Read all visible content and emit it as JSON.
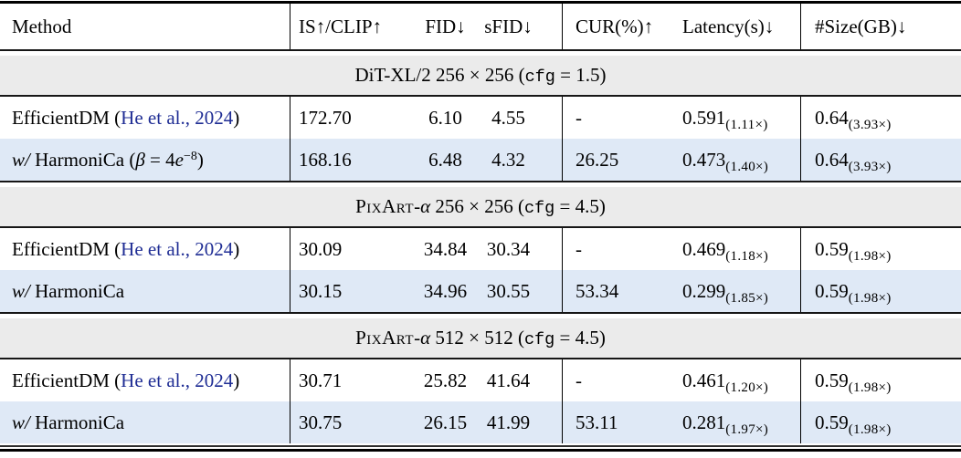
{
  "colors": {
    "section_bg": "#ebebeb",
    "highlight_bg": "#dfe9f6",
    "cite": "#1f2d94"
  },
  "header": {
    "method": "Method",
    "is_clip": "IS↑/CLIP↑",
    "fid": "FID↓",
    "sfid": "sFID↓",
    "cur": "CUR(%)↑",
    "latency": "Latency(s)↓",
    "size": "#Size(GB)↓"
  },
  "sections": [
    {
      "title": {
        "pre": "DiT-XL/2 256 × 256 (",
        "tt": "cfg",
        "post": " = 1.5)"
      },
      "rows": [
        {
          "method": {
            "pre": "EfficientDM (",
            "cite": "He et al., 2024",
            "mid": ")"
          },
          "is_clip": "172.70",
          "fid": "6.10",
          "sfid": "4.55",
          "cur": "-",
          "latency": {
            "value": "0.591",
            "speedup": "(1.11×)"
          },
          "size": {
            "value": "0.64",
            "ratio": "(3.93×)"
          }
        },
        {
          "method": {
            "w": "w/",
            "pre": " HarmoniCa (",
            "beta": "β",
            "eq": " = 4",
            "e": "e",
            "exp": "−8",
            "post": ")"
          },
          "is_clip": "168.16",
          "fid": "6.48",
          "sfid": "4.32",
          "cur": "26.25",
          "latency": {
            "value": "0.473",
            "speedup": "(1.40×)"
          },
          "size": {
            "value": "0.64",
            "ratio": "(3.93×)"
          }
        }
      ]
    },
    {
      "title": {
        "sc": "PixArt",
        "dash": "-",
        "alpha": "α",
        "mid": " 256 × 256 (",
        "tt": "cfg",
        "post": " = 4.5)"
      },
      "rows": [
        {
          "method": {
            "pre": "EfficientDM (",
            "cite": "He et al., 2024",
            "mid": ")"
          },
          "is_clip": "30.09",
          "fid": "34.84",
          "sfid": "30.34",
          "cur": "-",
          "latency": {
            "value": "0.469",
            "speedup": "(1.18×)"
          },
          "size": {
            "value": "0.59",
            "ratio": "(1.98×)"
          }
        },
        {
          "method": {
            "w": "w/",
            "pre": " HarmoniCa"
          },
          "is_clip": "30.15",
          "fid": "34.96",
          "sfid": "30.55",
          "cur": "53.34",
          "latency": {
            "value": "0.299",
            "speedup": "(1.85×)"
          },
          "size": {
            "value": "0.59",
            "ratio": "(1.98×)"
          }
        }
      ]
    },
    {
      "title": {
        "sc": "PixArt",
        "dash": "-",
        "alpha": "α",
        "mid": " 512 × 512 (",
        "tt": "cfg",
        "post": " = 4.5)"
      },
      "rows": [
        {
          "method": {
            "pre": "EfficientDM (",
            "cite": "He et al., 2024",
            "mid": ")"
          },
          "is_clip": "30.71",
          "fid": "25.82",
          "sfid": "41.64",
          "cur": "-",
          "latency": {
            "value": "0.461",
            "speedup": "(1.20×)"
          },
          "size": {
            "value": "0.59",
            "ratio": "(1.98×)"
          }
        },
        {
          "method": {
            "w": "w/",
            "pre": " HarmoniCa"
          },
          "is_clip": "30.75",
          "fid": "26.15",
          "sfid": "41.99",
          "cur": "53.11",
          "latency": {
            "value": "0.281",
            "speedup": "(1.97×)"
          },
          "size": {
            "value": "0.59",
            "ratio": "(1.98×)"
          }
        }
      ]
    }
  ]
}
